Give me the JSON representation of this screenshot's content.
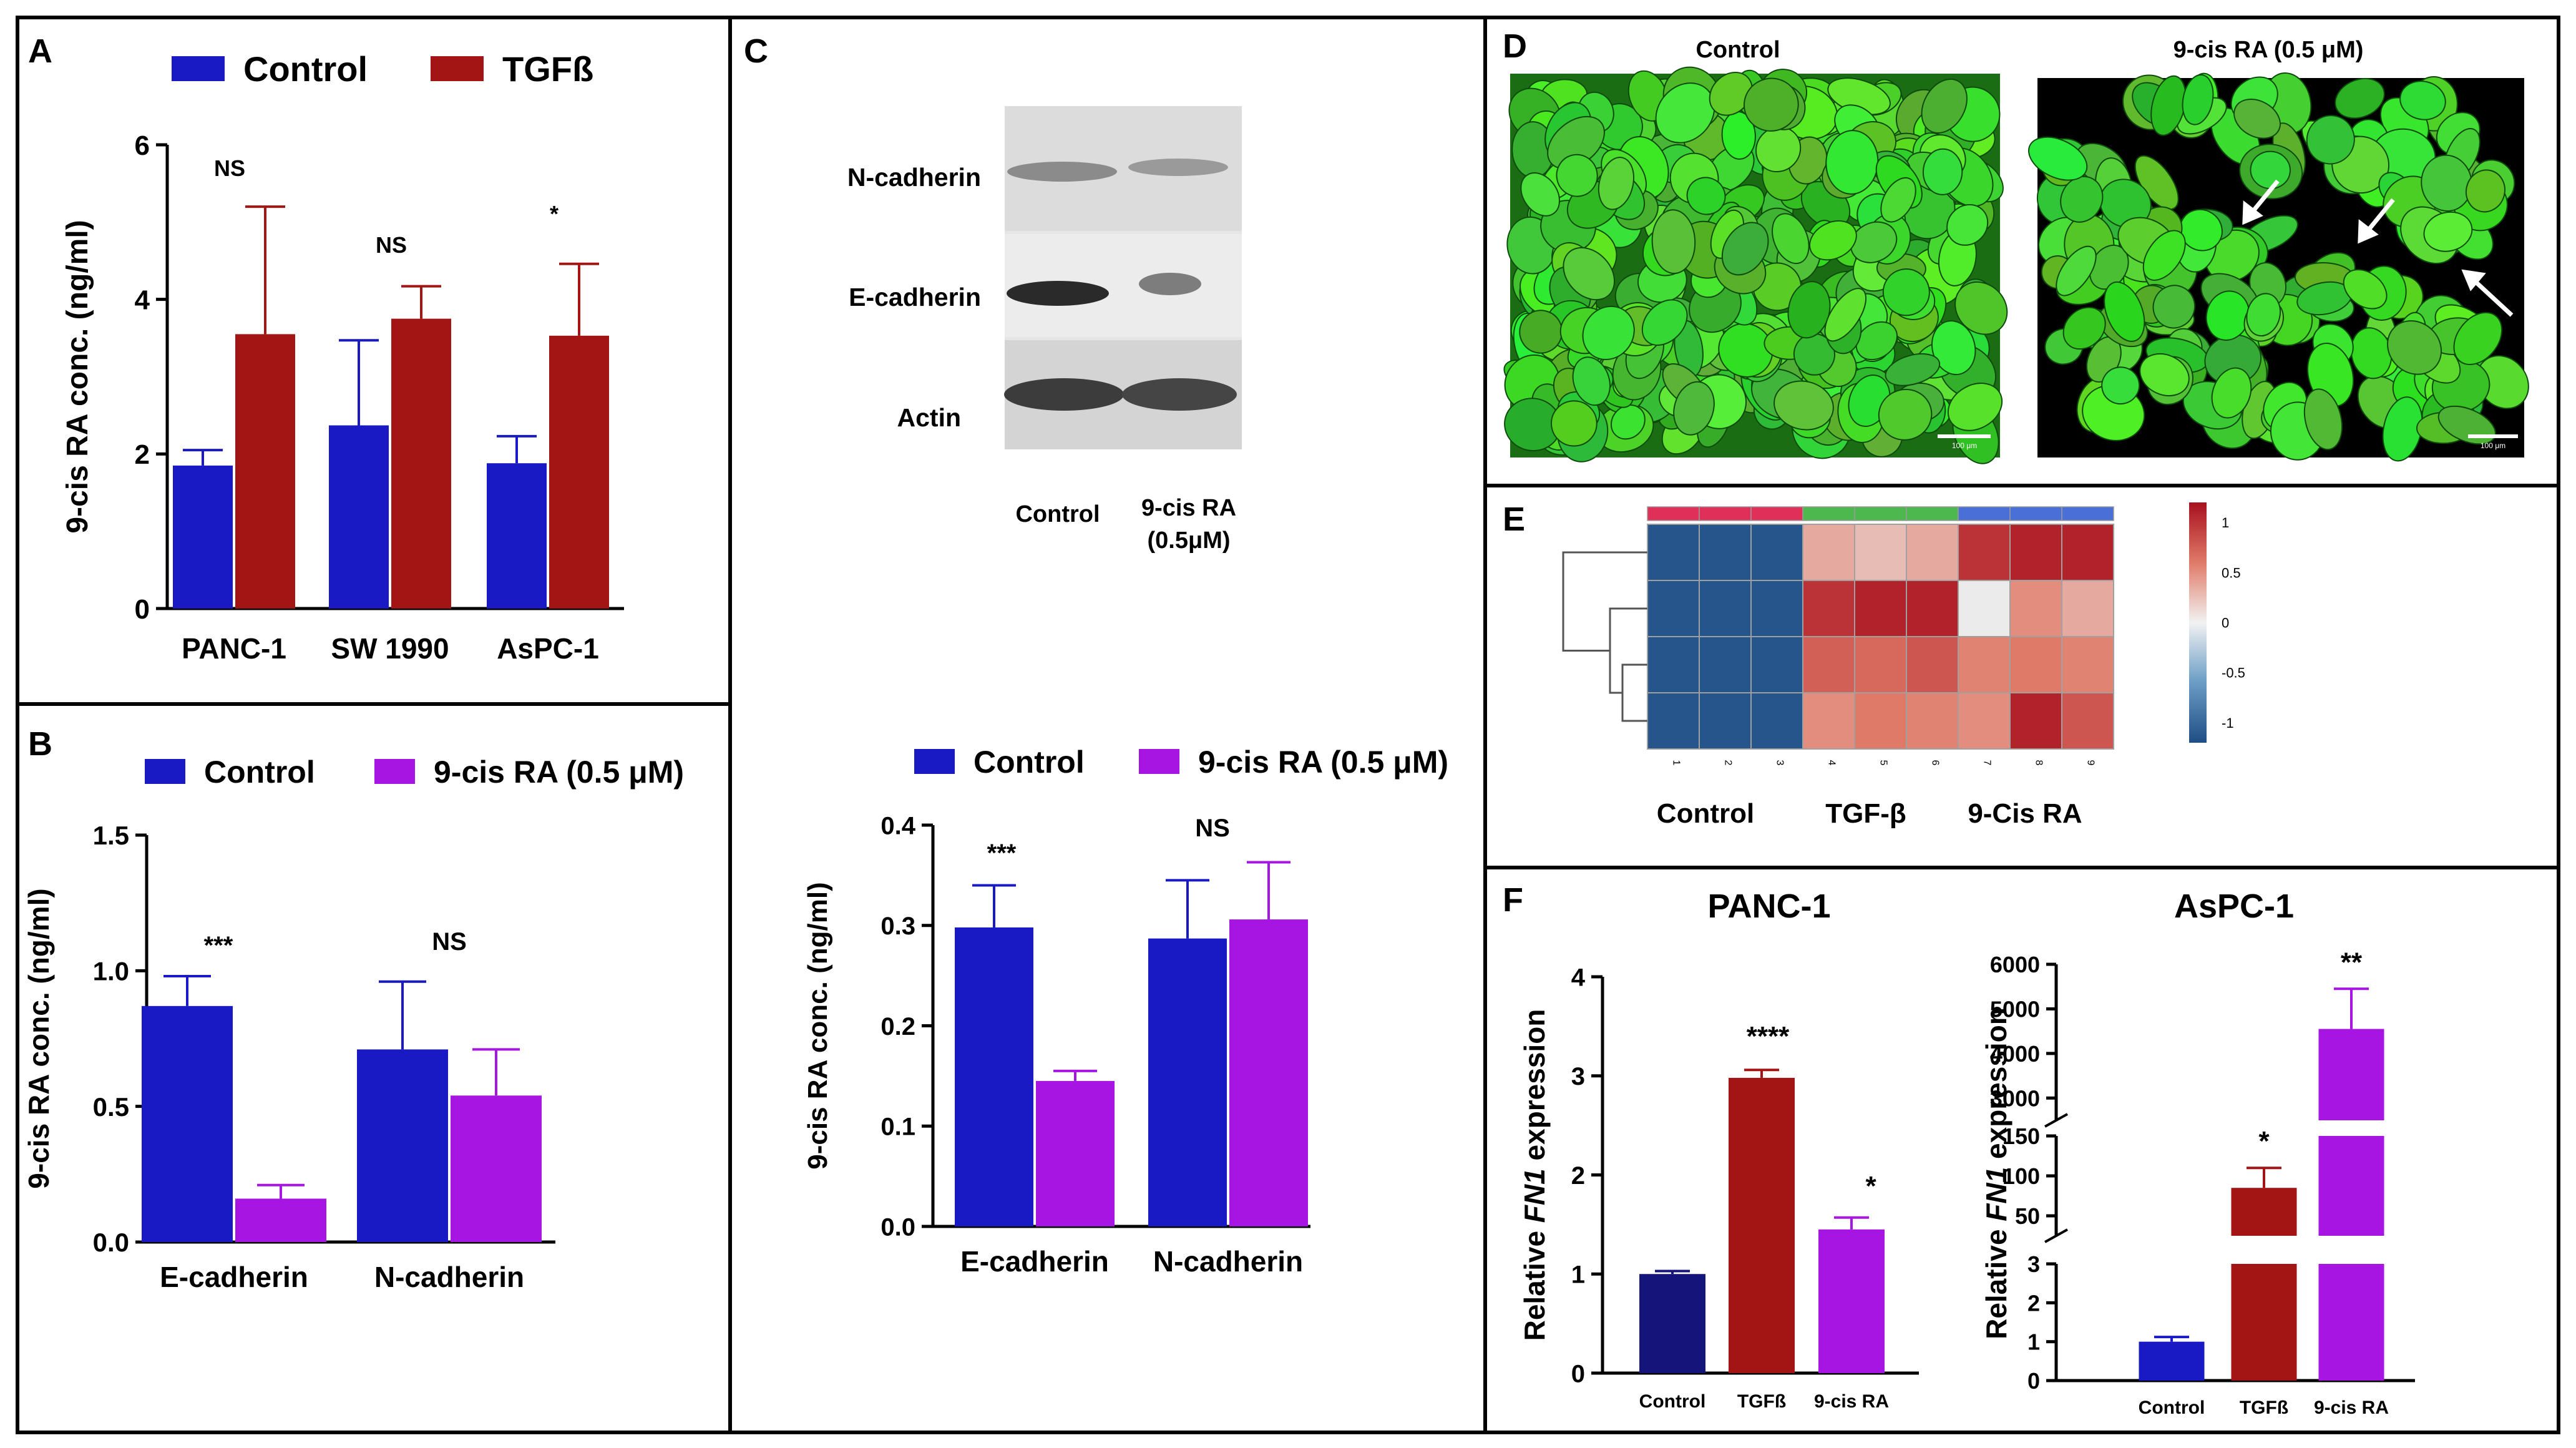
{
  "colors": {
    "blue": "#1a1ac4",
    "darkblue": "#14147a",
    "red": "#a31515",
    "purple": "#a715e3"
  },
  "panels": {
    "A": {
      "letter": "A"
    },
    "B": {
      "letter": "B"
    },
    "C": {
      "letter": "C"
    },
    "D": {
      "letter": "D",
      "label_left": "Control",
      "label_right": "9-cis RA (0.5 μM)",
      "scalebar": "100 μm"
    },
    "E": {
      "letter": "E",
      "groups": [
        "Control",
        "TGF-β",
        "9-Cis RA"
      ],
      "legend_ticks": [
        "1",
        "0.5",
        "0",
        "-0.5",
        "-1"
      ],
      "col_labels": [
        "1",
        "2",
        "3",
        "4",
        "5",
        "6",
        "7",
        "8",
        "9"
      ]
    },
    "F": {
      "letter": "F"
    }
  },
  "blot": {
    "bands": [
      "N-cadherin",
      "E-cadherin",
      "Actin"
    ],
    "lanes": [
      "Control",
      "9-cis RA",
      "(0.5μM)"
    ]
  },
  "chart_data": [
    {
      "id": "A",
      "type": "bar",
      "legend": [
        "Control",
        "TGFß"
      ],
      "categories": [
        "PANC-1",
        "SW 1990",
        "AsPC-1"
      ],
      "ylabel": "9-cis RA conc. (ng/ml)",
      "ylim": [
        0,
        6
      ],
      "yticks": [
        "0",
        "2",
        "4",
        "6"
      ],
      "series": [
        {
          "name": "Control",
          "values": [
            1.85,
            2.37,
            1.88
          ],
          "errors": [
            0.2,
            1.1,
            0.35
          ]
        },
        {
          "name": "TGFß",
          "values": [
            3.55,
            3.75,
            3.53
          ],
          "errors": [
            1.65,
            0.42,
            0.93
          ]
        }
      ],
      "annotations": [
        "NS",
        "NS",
        "*"
      ]
    },
    {
      "id": "B",
      "type": "bar",
      "legend": [
        "Control",
        "9-cis RA (0.5 μM)"
      ],
      "categories": [
        "E-cadherin",
        "N-cadherin"
      ],
      "ylabel": "9-cis RA conc. (ng/ml)",
      "ylim": [
        0,
        1.5
      ],
      "yticks": [
        "0.0",
        "0.5",
        "1.0",
        "1.5"
      ],
      "series": [
        {
          "name": "Control",
          "values": [
            0.87,
            0.71
          ],
          "errors": [
            0.11,
            0.25
          ]
        },
        {
          "name": "9-cis RA (0.5 μM)",
          "values": [
            0.16,
            0.54
          ],
          "errors": [
            0.05,
            0.17
          ]
        }
      ],
      "annotations": [
        "***",
        "NS"
      ]
    },
    {
      "id": "C",
      "type": "bar",
      "legend": [
        "Control",
        "9-cis RA (0.5 μM)"
      ],
      "categories": [
        "E-cadherin",
        "N-cadherin"
      ],
      "ylabel": "9-cis RA conc. (ng/ml)",
      "ylim": [
        0,
        0.4
      ],
      "yticks": [
        "0.0",
        "0.1",
        "0.2",
        "0.3",
        "0.4"
      ],
      "series": [
        {
          "name": "Control",
          "values": [
            0.298,
            0.287
          ],
          "errors": [
            0.042,
            0.058
          ]
        },
        {
          "name": "9-cis RA (0.5 μM)",
          "values": [
            0.145,
            0.306
          ],
          "errors": [
            0.01,
            0.057
          ]
        }
      ],
      "annotations": [
        "***",
        "NS"
      ]
    },
    {
      "id": "F1",
      "type": "bar",
      "title": "PANC-1",
      "categories": [
        "Control",
        "TGFß",
        "9-cis RA"
      ],
      "ylabel_pre": "Relative ",
      "ylabel_it": "FN1",
      "ylabel_post": " expression",
      "ylim": [
        0,
        4
      ],
      "yticks": [
        "0",
        "1",
        "2",
        "3",
        "4"
      ],
      "values": [
        1.0,
        2.98,
        1.45
      ],
      "errors": [
        0.03,
        0.08,
        0.12
      ],
      "annotations": [
        "",
        "****",
        "*"
      ]
    },
    {
      "id": "F2",
      "type": "bar",
      "title": "AsPC-1",
      "categories": [
        "Control",
        "TGFß",
        "9-cis RA"
      ],
      "ylabel_pre": "Relative ",
      "ylabel_it": "FN1",
      "ylabel_post": " expression",
      "y_segments": [
        {
          "ylim": [
            0,
            3
          ],
          "ticks": [
            "0",
            "1",
            "2",
            "3"
          ]
        },
        {
          "ylim": [
            25,
            150
          ],
          "ticks": [
            "50",
            "100",
            "150"
          ]
        },
        {
          "ylim": [
            2500,
            6000
          ],
          "ticks": [
            "3000",
            "4000",
            "5000",
            "6000"
          ]
        }
      ],
      "values": [
        1.0,
        85,
        4550
      ],
      "errors": [
        0.12,
        25,
        900
      ],
      "annotations": [
        "",
        "*",
        "**"
      ]
    },
    {
      "id": "E",
      "type": "heatmap",
      "columns": [
        "1",
        "2",
        "3",
        "4",
        "5",
        "6",
        "7",
        "8",
        "9"
      ],
      "column_groups": [
        "Control",
        "Control",
        "Control",
        "TGF-β",
        "TGF-β",
        "TGF-β",
        "9-Cis RA",
        "9-Cis RA",
        "9-Cis RA"
      ],
      "rows": 4,
      "values": [
        [
          -1.15,
          -1.15,
          -1.15,
          0.35,
          0.25,
          0.35,
          1.0,
          1.1,
          1.1
        ],
        [
          -1.15,
          -1.15,
          -1.15,
          1.0,
          1.1,
          1.1,
          0.0,
          0.5,
          0.35
        ],
        [
          -1.15,
          -1.15,
          -1.15,
          0.75,
          0.7,
          0.8,
          0.55,
          0.6,
          0.55
        ],
        [
          -1.15,
          -1.15,
          -1.15,
          0.5,
          0.6,
          0.55,
          0.5,
          1.1,
          0.8
        ]
      ],
      "legend_range": [
        -1.2,
        1.2
      ]
    }
  ]
}
